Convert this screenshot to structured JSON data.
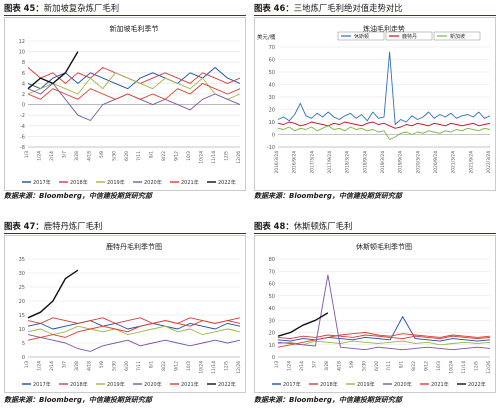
{
  "charts": [
    {
      "key": "c45",
      "header": {
        "label": "图表 45：",
        "text": "新加坡复杂炼厂毛利"
      },
      "source": "数据来源：Bloomberg，中信建投期货研究部",
      "chart_data": {
        "type": "line",
        "title": "新加坡毛利季节",
        "ylim": [
          -8,
          12
        ],
        "yticks": [
          "-8",
          "-6",
          "-4",
          "-2",
          "0",
          "2",
          "4",
          "6",
          "8",
          "10",
          "12"
        ],
        "xticks": [
          "1/3",
          "1/24",
          "2/14",
          "3/7",
          "3/28",
          "4/18",
          "5/9",
          "5/30",
          "6/20",
          "7/11",
          "8/1",
          "8/22",
          "9/12",
          "10/3",
          "10/24",
          "11/14",
          "12/5",
          "12/26"
        ],
        "series": [
          {
            "name": "2017年",
            "color": "#1f4ea3",
            "values": [
              4,
              3,
              5,
              6,
              4,
              6,
              5,
              4,
              3,
              5,
              6,
              5,
              4,
              6,
              5,
              7,
              5,
              4
            ]
          },
          {
            "name": "2018年",
            "color": "#d83a3a",
            "values": [
              7,
              5,
              6,
              4,
              6,
              5,
              7,
              6,
              5,
              4,
              5,
              6,
              5,
              4,
              6,
              5,
              4,
              5
            ]
          },
          {
            "name": "2019年",
            "color": "#9bb84a",
            "values": [
              2,
              3,
              4,
              3,
              2,
              5,
              3,
              6,
              5,
              4,
              3,
              5,
              4,
              3,
              5,
              2,
              1,
              2
            ]
          },
          {
            "name": "2020年",
            "color": "#7b55a8",
            "values": [
              3,
              2,
              4,
              1,
              -2,
              -3,
              0,
              1,
              2,
              1,
              0,
              1,
              0,
              -1,
              1,
              2,
              1,
              0
            ]
          },
          {
            "name": "2021年",
            "color": "#e23b2e",
            "values": [
              2,
              1,
              3,
              2,
              1,
              3,
              2,
              1,
              2,
              1,
              2,
              1,
              3,
              2,
              4,
              3,
              2,
              3
            ]
          },
          {
            "name": "2022年",
            "color": "#111111",
            "values": [
              3,
              5,
              4,
              6,
              10,
              null,
              null,
              null,
              null,
              null,
              null,
              null,
              null,
              null,
              null,
              null,
              null,
              null
            ]
          }
        ]
      }
    },
    {
      "key": "c46",
      "header": {
        "label": "图表 46：",
        "text": "三地炼厂毛利绝对值走势对比"
      },
      "source": "数据来源：Bloomberg，中信建投期货研究部",
      "chart_data": {
        "type": "line",
        "title": "炼油毛利走势",
        "ylabel": "美元/桶",
        "ylim": [
          -10,
          70
        ],
        "yticks": [
          "-10",
          "0",
          "10",
          "20",
          "30",
          "40",
          "50",
          "60",
          "70"
        ],
        "xticks": [
          "2016/3/24",
          "2016/9/24",
          "2017/3/24",
          "2017/9/24",
          "2018/3/24",
          "2018/9/24",
          "2019/3/24",
          "2019/9/24",
          "2020/3/24",
          "2020/9/24",
          "2021/3/24",
          "2021/9/24",
          "2022/3/24"
        ],
        "series": [
          {
            "name": "休斯顿",
            "color": "#2f6fc0",
            "values": [
              12,
              14,
              11,
              16,
              25,
              15,
              13,
              17,
              14,
              18,
              14,
              12,
              15,
              17,
              13,
              16,
              11,
              18,
              13,
              14,
              66,
              8,
              12,
              10,
              15,
              12,
              14,
              18,
              13,
              16,
              14,
              17,
              13,
              15,
              16,
              14,
              18,
              13,
              15
            ]
          },
          {
            "name": "鹿特丹",
            "color": "#c8102e",
            "values": [
              9,
              8,
              10,
              9,
              7,
              8,
              10,
              9,
              8,
              7,
              9,
              8,
              10,
              9,
              8,
              7,
              9,
              10,
              8,
              9,
              7,
              5,
              6,
              8,
              7,
              9,
              8,
              7,
              9,
              8,
              7,
              9,
              8,
              7,
              8,
              9,
              7,
              8,
              9
            ]
          },
          {
            "name": "新加坡",
            "color": "#7ab648",
            "values": [
              5,
              4,
              6,
              3,
              5,
              4,
              6,
              3,
              5,
              7,
              4,
              5,
              3,
              6,
              4,
              5,
              3,
              4,
              2,
              3,
              -4,
              -2,
              1,
              2,
              0,
              2,
              1,
              3,
              2,
              1,
              3,
              2,
              4,
              3,
              5,
              4,
              3,
              5,
              4
            ]
          }
        ]
      }
    },
    {
      "key": "c47",
      "header": {
        "label": "图表 47：",
        "text": "鹿特丹炼厂毛利"
      },
      "source": "数据来源：Bloomberg，中信建投期货研究部",
      "chart_data": {
        "type": "line",
        "title": "鹿特丹毛利季节图",
        "ylim": [
          0,
          35
        ],
        "yticks": [
          "0",
          "5",
          "10",
          "15",
          "20",
          "25",
          "30",
          "35"
        ],
        "xticks": [
          "1/3",
          "1/24",
          "2/14",
          "3/7",
          "3/28",
          "4/18",
          "5/9",
          "5/30",
          "6/20",
          "7/11",
          "8/1",
          "8/22",
          "9/12",
          "10/3",
          "10/24",
          "11/14",
          "12/5",
          "12/26"
        ],
        "series": [
          {
            "name": "2017年",
            "color": "#1f4ea3",
            "values": [
              11,
              12,
              10,
              11,
              12,
              13,
              11,
              12,
              10,
              11,
              12,
              11,
              10,
              12,
              11,
              10,
              12,
              11
            ]
          },
          {
            "name": "2018年",
            "color": "#d83a3a",
            "values": [
              13,
              12,
              14,
              13,
              12,
              13,
              14,
              12,
              13,
              14,
              12,
              13,
              12,
              14,
              13,
              12,
              13,
              12
            ]
          },
          {
            "name": "2019年",
            "color": "#9bb84a",
            "values": [
              9,
              10,
              8,
              9,
              11,
              10,
              9,
              10,
              8,
              9,
              10,
              11,
              9,
              10,
              8,
              9,
              10,
              9
            ]
          },
          {
            "name": "2020年",
            "color": "#7b55a8",
            "values": [
              8,
              7,
              6,
              5,
              3,
              2,
              4,
              5,
              6,
              4,
              5,
              6,
              5,
              4,
              5,
              6,
              5,
              6
            ]
          },
          {
            "name": "2021年",
            "color": "#e23b2e",
            "values": [
              6,
              7,
              8,
              7,
              9,
              10,
              11,
              10,
              9,
              11,
              12,
              13,
              12,
              11,
              13,
              12,
              13,
              14
            ]
          },
          {
            "name": "2022年",
            "color": "#111111",
            "values": [
              14,
              16,
              20,
              28,
              31,
              null,
              null,
              null,
              null,
              null,
              null,
              null,
              null,
              null,
              null,
              null,
              null,
              null
            ]
          }
        ]
      }
    },
    {
      "key": "c48",
      "header": {
        "label": "图表 48：",
        "text": "休斯顿炼厂毛利"
      },
      "source": "数据来源：Bloomberg，中信建投期货研究部",
      "chart_data": {
        "type": "line",
        "title": "休斯顿毛利季节图",
        "ylim": [
          0,
          80
        ],
        "yticks": [
          "0",
          "10",
          "20",
          "30",
          "40",
          "50",
          "60",
          "70",
          "80"
        ],
        "xticks": [
          "1/3",
          "1/24",
          "2/14",
          "3/7",
          "3/28",
          "4/18",
          "5/9",
          "5/30",
          "6/20",
          "7/11",
          "8/1",
          "8/22",
          "9/12",
          "10/3",
          "10/24",
          "11/14",
          "12/5",
          "12/26"
        ],
        "series": [
          {
            "name": "2017年",
            "color": "#1f4ea3",
            "values": [
              14,
              13,
              15,
              14,
              16,
              15,
              14,
              16,
              15,
              14,
              33,
              15,
              14,
              13,
              15,
              14,
              13,
              14
            ]
          },
          {
            "name": "2018年",
            "color": "#d83a3a",
            "values": [
              16,
              15,
              17,
              16,
              18,
              17,
              16,
              18,
              17,
              16,
              15,
              17,
              16,
              15,
              17,
              16,
              15,
              16
            ]
          },
          {
            "name": "2019年",
            "color": "#9bb84a",
            "values": [
              11,
              12,
              10,
              13,
              12,
              11,
              13,
              12,
              11,
              12,
              13,
              11,
              12,
              10,
              11,
              12,
              11,
              12
            ]
          },
          {
            "name": "2020年",
            "color": "#7b55a8",
            "values": [
              12,
              11,
              10,
              9,
              67,
              8,
              7,
              6,
              8,
              7,
              6,
              7,
              8,
              7,
              6,
              7,
              8,
              7
            ]
          },
          {
            "name": "2021年",
            "color": "#e23b2e",
            "values": [
              8,
              10,
              12,
              14,
              16,
              18,
              19,
              20,
              18,
              17,
              19,
              18,
              17,
              16,
              18,
              17,
              16,
              17
            ]
          },
          {
            "name": "2022年",
            "color": "#111111",
            "values": [
              17,
              20,
              26,
              30,
              36,
              null,
              null,
              null,
              null,
              null,
              null,
              null,
              null,
              null,
              null,
              null,
              null,
              null
            ]
          }
        ]
      }
    }
  ]
}
